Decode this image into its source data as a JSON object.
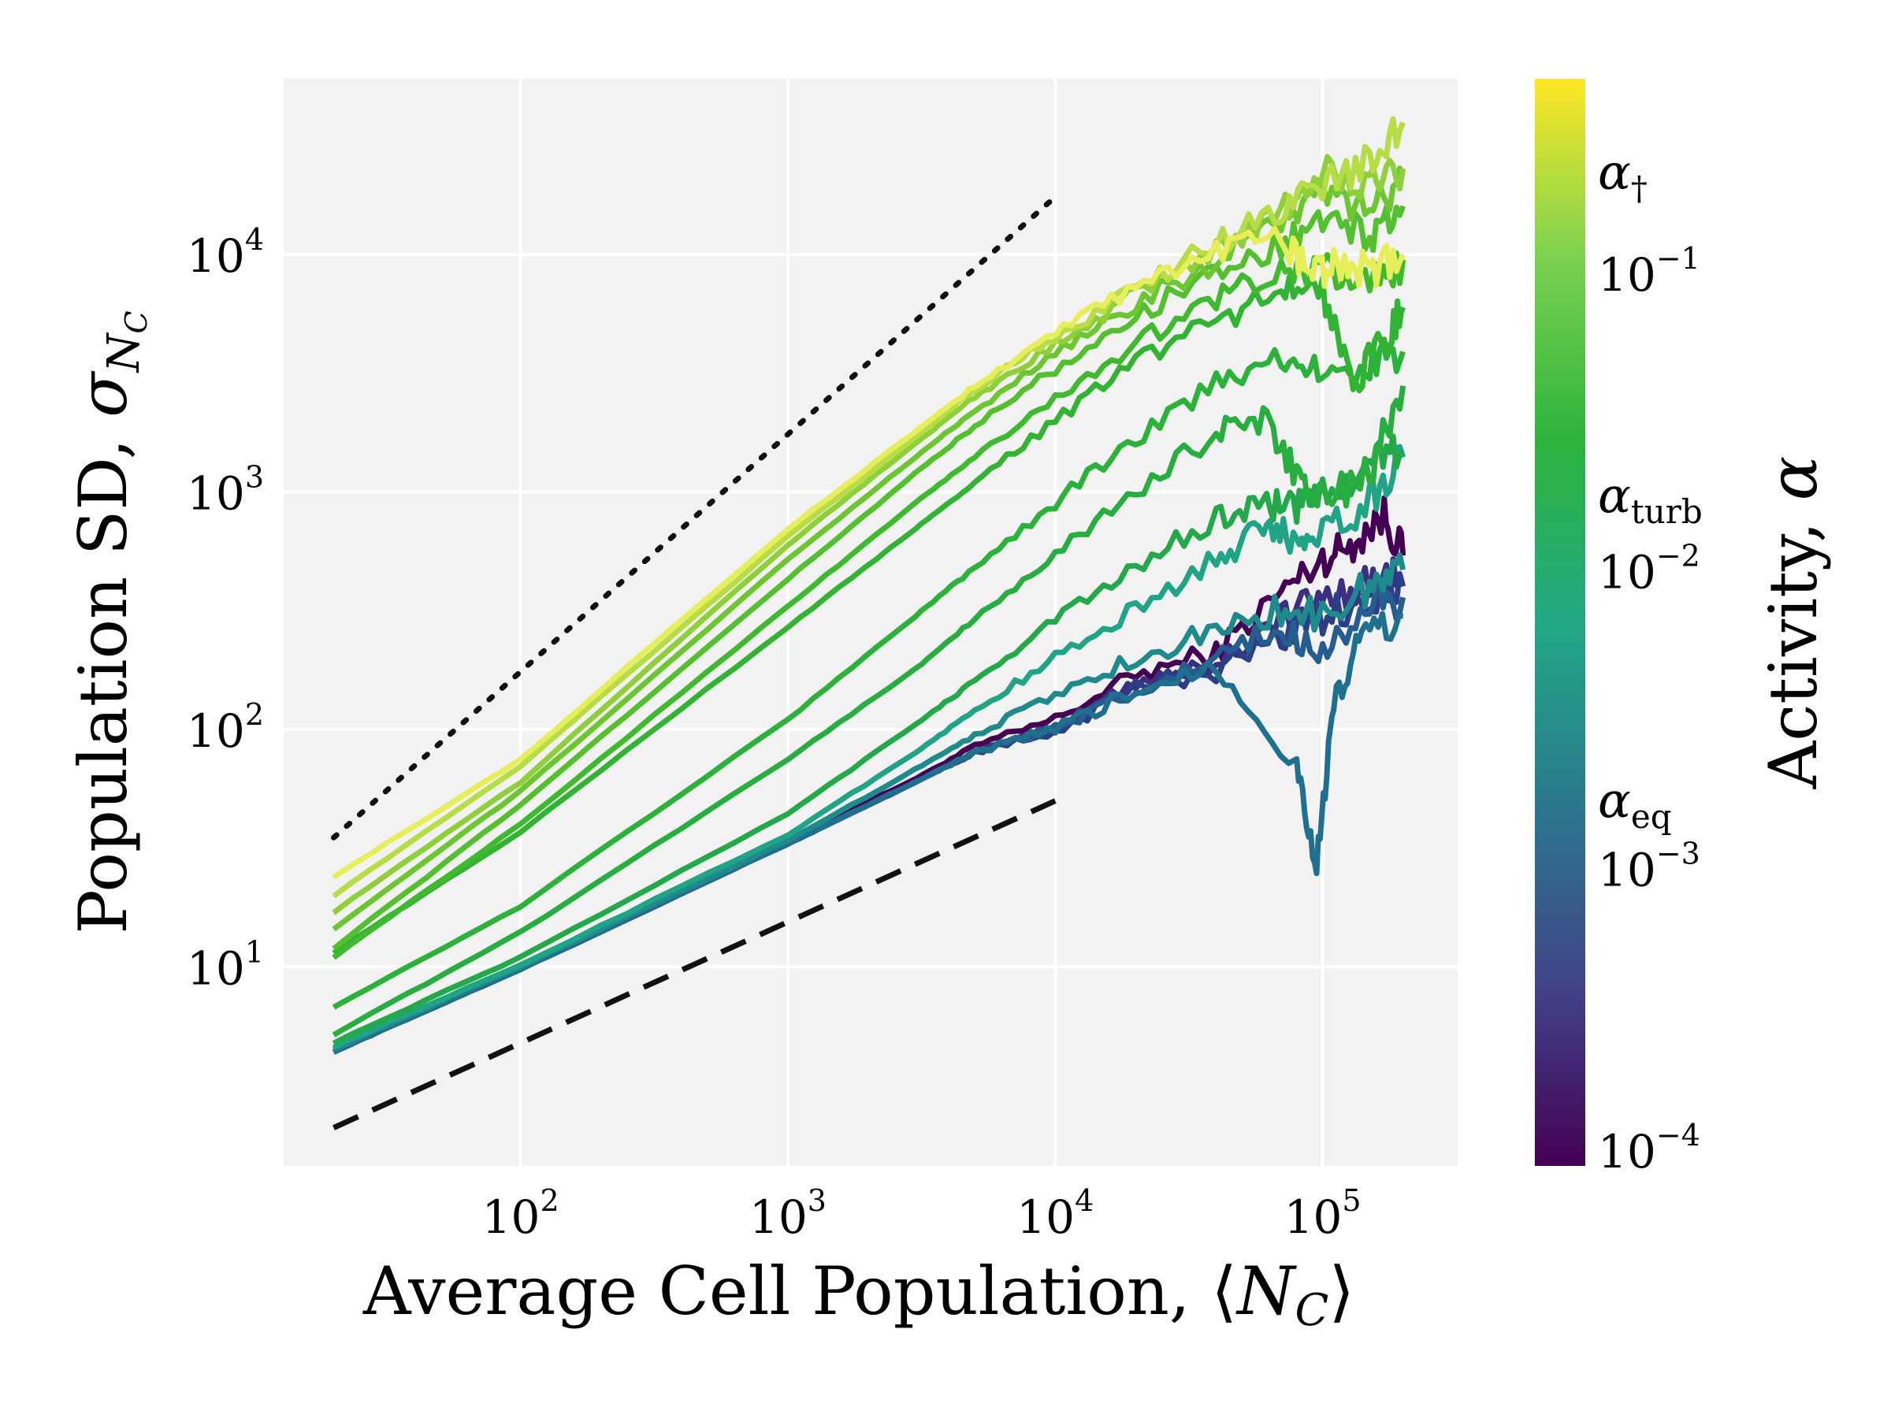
{
  "chart_data": {
    "type": "line",
    "x_scale": "log",
    "y_scale": "log",
    "xlabel": "Average Cell Population, ⟨N_C⟩",
    "xlabel_parts": {
      "main": "Average Cell Population, ⟨",
      "var": "N",
      "sub": "C",
      "close": "⟩"
    },
    "ylabel": "Population SD, σ_N_C",
    "ylabel_parts": {
      "main": "Population SD, ",
      "var": "σ",
      "sub": "N",
      "subsub": "C"
    },
    "xlim": [
      13,
      320000
    ],
    "ylim": [
      1.45,
      55000
    ],
    "grid": true,
    "background": "#f2f2f2",
    "x_ticks": [
      {
        "value": 100,
        "base": "10",
        "exp": "2"
      },
      {
        "value": 1000,
        "base": "10",
        "exp": "3"
      },
      {
        "value": 10000,
        "base": "10",
        "exp": "4"
      },
      {
        "value": 100000,
        "base": "10",
        "exp": "5"
      }
    ],
    "y_ticks": [
      {
        "value": 10,
        "base": "10",
        "exp": "1"
      },
      {
        "value": 100,
        "base": "10",
        "exp": "2"
      },
      {
        "value": 1000,
        "base": "10",
        "exp": "3"
      },
      {
        "value": 10000,
        "base": "10",
        "exp": "4"
      }
    ],
    "reference_lines": [
      {
        "style": "dotted",
        "color": "#111111",
        "x": [
          20,
          10000
        ],
        "y": [
          35,
          17500
        ]
      },
      {
        "style": "dashed",
        "color": "#111111",
        "x": [
          20,
          10000
        ],
        "y": [
          2.1,
          50
        ]
      }
    ],
    "series": [
      {
        "alpha": 0.0001,
        "color": "#440154",
        "points": [
          [
            20,
            4.4
          ],
          [
            100,
            9.8
          ],
          [
            1000,
            34
          ],
          [
            3000,
            62
          ],
          [
            5000,
            85
          ],
          [
            10000,
            110
          ],
          [
            20000,
            170
          ],
          [
            40000,
            210
          ],
          [
            70000,
            380
          ],
          [
            100000,
            520
          ],
          [
            130000,
            610
          ],
          [
            170000,
            800
          ],
          [
            200000,
            540
          ]
        ]
      },
      {
        "alpha": 0.0002,
        "color": "#3b2f80",
        "points": [
          [
            20,
            4.4
          ],
          [
            100,
            9.8
          ],
          [
            1000,
            33
          ],
          [
            3000,
            60
          ],
          [
            5000,
            80
          ],
          [
            10000,
            100
          ],
          [
            20000,
            160
          ],
          [
            40000,
            190
          ],
          [
            70000,
            300
          ],
          [
            100000,
            360
          ],
          [
            150000,
            420
          ],
          [
            200000,
            430
          ]
        ]
      },
      {
        "alpha": 0.00035,
        "color": "#2c3f86",
        "points": [
          [
            20,
            4.4
          ],
          [
            100,
            9.8
          ],
          [
            1000,
            33
          ],
          [
            3000,
            60
          ],
          [
            5000,
            80
          ],
          [
            10000,
            98
          ],
          [
            20000,
            150
          ],
          [
            40000,
            180
          ],
          [
            70000,
            250
          ],
          [
            100000,
            300
          ],
          [
            150000,
            350
          ],
          [
            200000,
            400
          ]
        ]
      },
      {
        "alpha": 0.0006,
        "color": "#255e8e",
        "points": [
          [
            20,
            4.4
          ],
          [
            100,
            9.8
          ],
          [
            1000,
            33
          ],
          [
            3000,
            60
          ],
          [
            5000,
            80
          ],
          [
            10000,
            100
          ],
          [
            20000,
            140
          ],
          [
            40000,
            200
          ],
          [
            70000,
            260
          ],
          [
            100000,
            220
          ],
          [
            150000,
            320
          ],
          [
            200000,
            360
          ]
        ]
      },
      {
        "alpha": 0.001,
        "color": "#1f6f8f",
        "points": [
          [
            20,
            4.4
          ],
          [
            100,
            9.8
          ],
          [
            1000,
            33
          ],
          [
            3000,
            60
          ],
          [
            5000,
            80
          ],
          [
            10000,
            100
          ],
          [
            20000,
            145
          ],
          [
            40000,
            190
          ],
          [
            80000,
            70
          ],
          [
            95000,
            27
          ],
          [
            110000,
            120
          ],
          [
            140000,
            250
          ],
          [
            200000,
            300
          ]
        ]
      },
      {
        "alpha": 0.002,
        "color": "#1f8a8c",
        "points": [
          [
            20,
            4.5
          ],
          [
            100,
            10
          ],
          [
            1000,
            34
          ],
          [
            3000,
            68
          ],
          [
            5000,
            95
          ],
          [
            10000,
            140
          ],
          [
            20000,
            200
          ],
          [
            40000,
            260
          ],
          [
            70000,
            320
          ],
          [
            100000,
            300
          ],
          [
            150000,
            400
          ],
          [
            200000,
            470
          ]
        ]
      },
      {
        "alpha": 0.004,
        "color": "#21a386",
        "points": [
          [
            20,
            4.6
          ],
          [
            100,
            10.2
          ],
          [
            1000,
            36
          ],
          [
            3000,
            80
          ],
          [
            5000,
            120
          ],
          [
            10000,
            200
          ],
          [
            20000,
            320
          ],
          [
            40000,
            520
          ],
          [
            60000,
            700
          ],
          [
            80000,
            640
          ],
          [
            100000,
            700
          ],
          [
            150000,
            900
          ],
          [
            200000,
            1400
          ]
        ]
      },
      {
        "alpha": 0.007,
        "color": "#24a84a",
        "points": [
          [
            20,
            4.8
          ],
          [
            100,
            11
          ],
          [
            1000,
            44
          ],
          [
            3000,
            105
          ],
          [
            5000,
            160
          ],
          [
            10000,
            290
          ],
          [
            20000,
            480
          ],
          [
            40000,
            780
          ],
          [
            60000,
            900
          ],
          [
            80000,
            850
          ],
          [
            100000,
            1000
          ],
          [
            150000,
            1300
          ],
          [
            200000,
            1450
          ]
        ]
      },
      {
        "alpha": 0.012,
        "color": "#28ae40",
        "points": [
          [
            20,
            5.2
          ],
          [
            100,
            14
          ],
          [
            1000,
            75
          ],
          [
            3000,
            180
          ],
          [
            5000,
            290
          ],
          [
            10000,
            550
          ],
          [
            20000,
            1000
          ],
          [
            40000,
            1800
          ],
          [
            60000,
            2000
          ],
          [
            80000,
            1200
          ],
          [
            100000,
            900
          ],
          [
            150000,
            1200
          ],
          [
            200000,
            2800
          ]
        ]
      },
      {
        "alpha": 0.02,
        "color": "#2cb23a",
        "points": [
          [
            20,
            6.8
          ],
          [
            100,
            18
          ],
          [
            1000,
            110
          ],
          [
            3000,
            300
          ],
          [
            5000,
            480
          ],
          [
            10000,
            900
          ],
          [
            20000,
            1700
          ],
          [
            40000,
            2800
          ],
          [
            70000,
            3700
          ],
          [
            100000,
            3200
          ],
          [
            150000,
            3500
          ],
          [
            200000,
            3900
          ]
        ]
      },
      {
        "alpha": 0.035,
        "color": "#33b334",
        "points": [
          [
            20,
            11.5
          ],
          [
            100,
            37
          ],
          [
            1000,
            270
          ],
          [
            3000,
            700
          ],
          [
            5000,
            1100
          ],
          [
            10000,
            2000
          ],
          [
            20000,
            3500
          ],
          [
            40000,
            5200
          ],
          [
            70000,
            7000
          ],
          [
            100000,
            6800
          ],
          [
            130000,
            3000
          ],
          [
            170000,
            4200
          ],
          [
            200000,
            6000
          ]
        ]
      },
      {
        "alpha": 0.05,
        "color": "#3fba2e",
        "points": [
          [
            20,
            11
          ],
          [
            100,
            40
          ],
          [
            1000,
            330
          ],
          [
            3000,
            900
          ],
          [
            5000,
            1400
          ],
          [
            10000,
            2500
          ],
          [
            20000,
            4200
          ],
          [
            40000,
            6500
          ],
          [
            70000,
            8500
          ],
          [
            100000,
            9000
          ],
          [
            150000,
            7500
          ],
          [
            200000,
            9500
          ]
        ]
      },
      {
        "alpha": 0.07,
        "color": "#55c02f",
        "points": [
          [
            20,
            12
          ],
          [
            100,
            48
          ],
          [
            1000,
            430
          ],
          [
            3000,
            1200
          ],
          [
            5000,
            1900
          ],
          [
            10000,
            3300
          ],
          [
            20000,
            5500
          ],
          [
            40000,
            8500
          ],
          [
            70000,
            11000
          ],
          [
            100000,
            14000
          ],
          [
            150000,
            12000
          ],
          [
            200000,
            16000
          ]
        ]
      },
      {
        "alpha": 0.1,
        "color": "#6cc632",
        "points": [
          [
            20,
            14.5
          ],
          [
            100,
            55
          ],
          [
            1000,
            520
          ],
          [
            3000,
            1400
          ],
          [
            5000,
            2200
          ],
          [
            10000,
            3800
          ],
          [
            20000,
            6200
          ],
          [
            40000,
            9500
          ],
          [
            70000,
            13000
          ],
          [
            100000,
            18000
          ],
          [
            150000,
            15000
          ],
          [
            200000,
            22000
          ]
        ]
      },
      {
        "alpha": 0.15,
        "color": "#8fcf3c",
        "points": [
          [
            20,
            17
          ],
          [
            100,
            60
          ],
          [
            1000,
            600
          ],
          [
            3000,
            1600
          ],
          [
            5000,
            2500
          ],
          [
            10000,
            4200
          ],
          [
            20000,
            6800
          ],
          [
            40000,
            10500
          ],
          [
            70000,
            15000
          ],
          [
            100000,
            22000
          ],
          [
            150000,
            20000
          ],
          [
            200000,
            23000
          ]
        ]
      },
      {
        "alpha": 0.25,
        "color": "#b6dc46",
        "points": [
          [
            20,
            20
          ],
          [
            100,
            70
          ],
          [
            1000,
            650
          ],
          [
            3000,
            1700
          ],
          [
            5000,
            2700
          ],
          [
            10000,
            4500
          ],
          [
            20000,
            7200
          ],
          [
            40000,
            11000
          ],
          [
            70000,
            16000
          ],
          [
            100000,
            20000
          ],
          [
            150000,
            24000
          ],
          [
            200000,
            36000
          ]
        ]
      },
      {
        "alpha": 0.4,
        "color": "#e6ef59",
        "points": [
          [
            20,
            24
          ],
          [
            100,
            75
          ],
          [
            1000,
            700
          ],
          [
            3000,
            1800
          ],
          [
            5000,
            2800
          ],
          [
            10000,
            4600
          ],
          [
            20000,
            7400
          ],
          [
            40000,
            10000
          ],
          [
            70000,
            12000
          ],
          [
            90000,
            8000
          ],
          [
            110000,
            9000
          ],
          [
            150000,
            8500
          ],
          [
            200000,
            10000
          ]
        ]
      }
    ],
    "colorbar": {
      "label_main": "Activity, ",
      "label_var": "α",
      "scale": "log",
      "range": [
        0.0001,
        0.45
      ],
      "colormap": "viridis",
      "stops": [
        "#440154",
        "#414487",
        "#2a788e",
        "#22a884",
        "#2db33c",
        "#7ad151",
        "#fde725"
      ],
      "ticks": [
        {
          "value": 0.0001,
          "base": "10",
          "exp": "−4"
        },
        {
          "value": 0.001,
          "base": "10",
          "exp": "−3"
        },
        {
          "value": 0.01,
          "base": "10",
          "exp": "−2"
        },
        {
          "value": 0.1,
          "base": "10",
          "exp": "−1"
        }
      ],
      "annotations": [
        {
          "value": 0.0017,
          "symbol": "α",
          "sub": "eq"
        },
        {
          "value": 0.018,
          "symbol": "α",
          "sub": "turb"
        },
        {
          "value": 0.22,
          "symbol": "α",
          "sub": "†"
        }
      ]
    }
  }
}
